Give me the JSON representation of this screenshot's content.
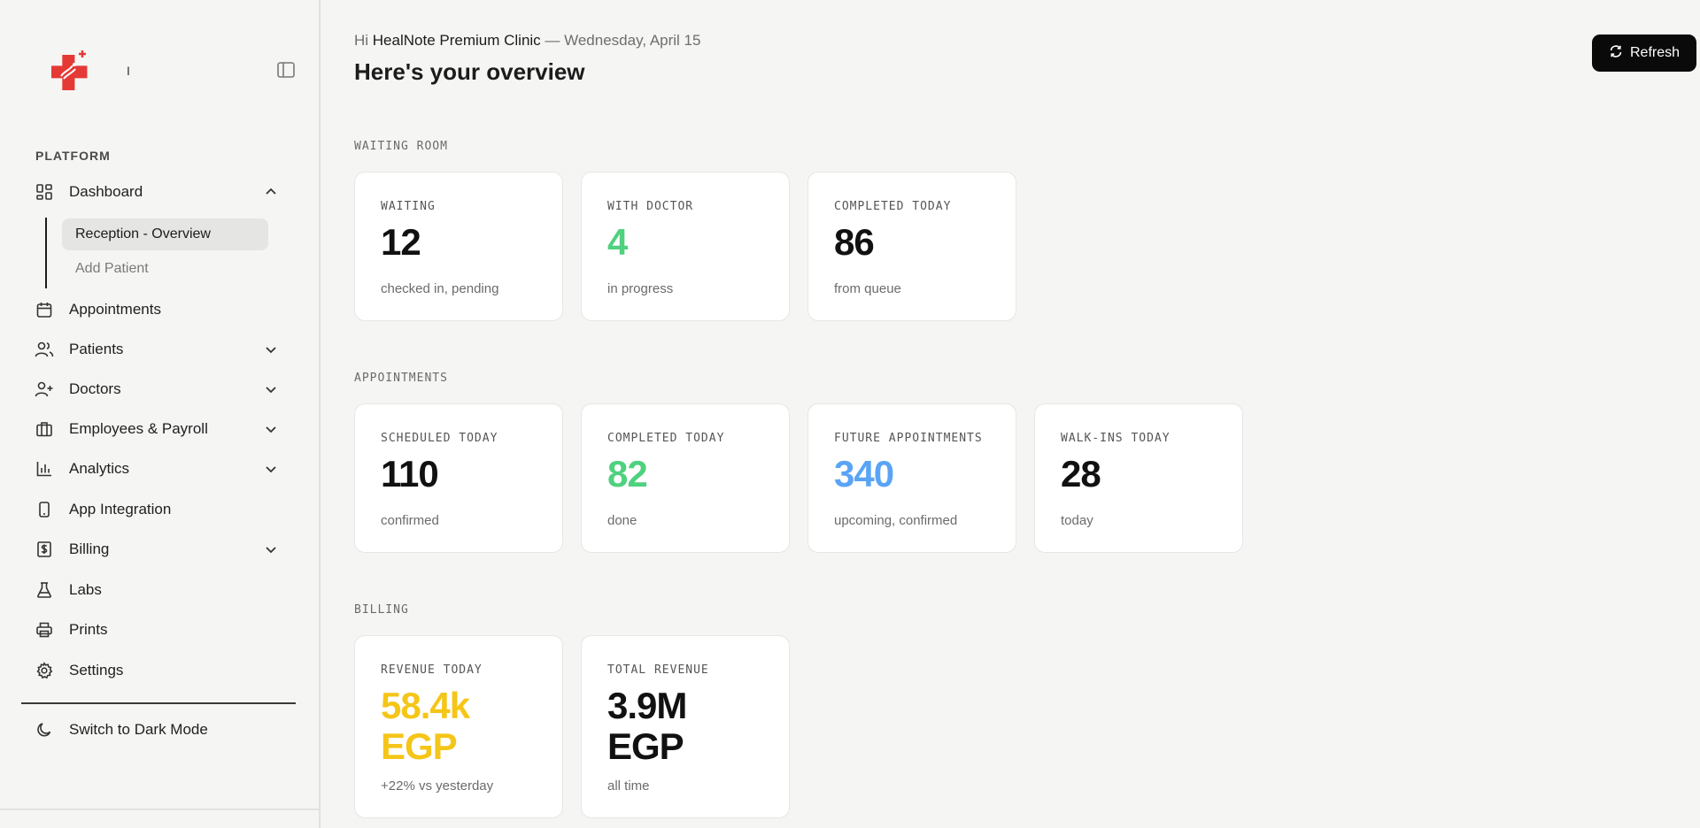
{
  "sidebar": {
    "brand_text": "I",
    "section_label": "PLATFORM",
    "items": [
      {
        "label": "Dashboard"
      },
      {
        "label": "Appointments"
      },
      {
        "label": "Patients"
      },
      {
        "label": "Doctors"
      },
      {
        "label": "Employees & Payroll"
      },
      {
        "label": "Analytics"
      },
      {
        "label": "App Integration"
      },
      {
        "label": "Billing"
      },
      {
        "label": "Labs"
      },
      {
        "label": "Prints"
      },
      {
        "label": "Settings"
      }
    ],
    "dashboard_sub": [
      {
        "label": "Reception - Overview"
      },
      {
        "label": "Add Patient"
      }
    ],
    "dark_mode_label": "Switch to Dark Mode"
  },
  "header": {
    "greeting_prefix": "Hi ",
    "clinic_name": "HealNote Premium Clinic",
    "date_text": " — Wednesday, April 15",
    "title": "Here's your overview",
    "refresh_label": "Refresh"
  },
  "groups": {
    "waiting_room": {
      "label": "WAITING ROOM",
      "cards": [
        {
          "label": "WAITING",
          "value": "12",
          "sub": "checked in, pending"
        },
        {
          "label": "WITH DOCTOR",
          "value": "4",
          "sub": "in progress"
        },
        {
          "label": "COMPLETED TODAY",
          "value": "86",
          "sub": "from queue"
        }
      ]
    },
    "appointments": {
      "label": "APPOINTMENTS",
      "cards": [
        {
          "label": "SCHEDULED TODAY",
          "value": "110",
          "sub": "confirmed"
        },
        {
          "label": "COMPLETED TODAY",
          "value": "82",
          "sub": "done"
        },
        {
          "label": "FUTURE APPOINTMENTS",
          "value": "340",
          "sub": "upcoming, confirmed"
        },
        {
          "label": "WALK-INS TODAY",
          "value": "28",
          "sub": "today"
        }
      ]
    },
    "billing": {
      "label": "BILLING",
      "cards": [
        {
          "label": "REVENUE TODAY",
          "value_line1": "58.4k",
          "value_line2": "EGP",
          "sub": "+22% vs yesterday"
        },
        {
          "label": "TOTAL REVENUE",
          "value_line1": "3.9M",
          "value_line2": "EGP",
          "sub": "all time"
        }
      ]
    }
  },
  "colors": {
    "accent_green": "#4fd17f",
    "accent_blue": "#5aa4f5",
    "accent_yellow": "#f5c518",
    "logo_red": "#e53935"
  }
}
